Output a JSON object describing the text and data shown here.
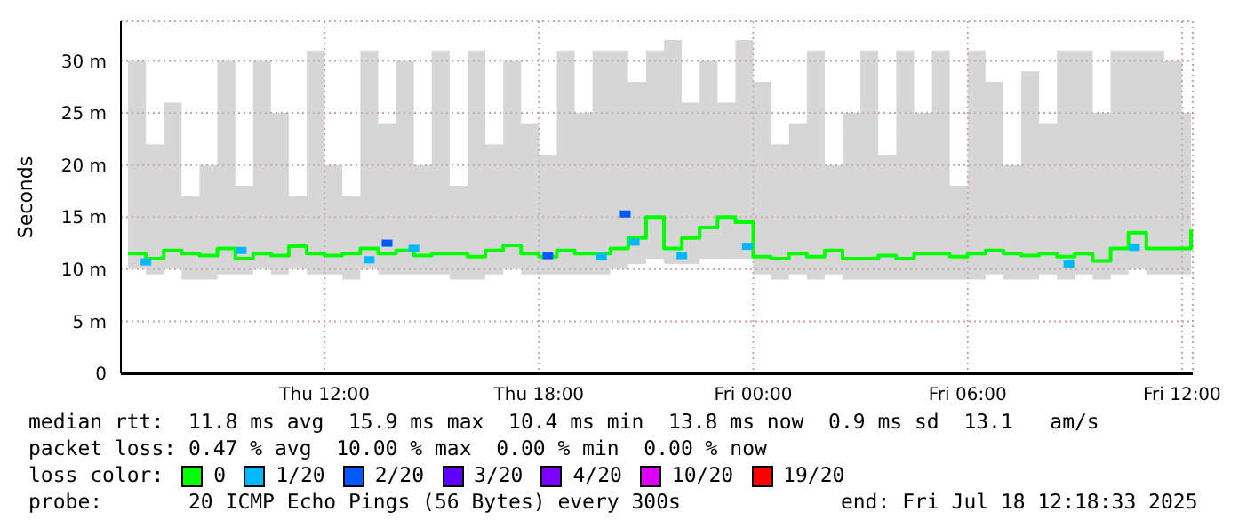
{
  "chart_data": {
    "type": "step",
    "ylabel": "Seconds",
    "legend_title": "loss color:",
    "legend": "bottom",
    "grid": true,
    "line_style": "solid",
    "xlim": [
      "2025-07-17T06:18",
      "2025-07-18T12:18"
    ],
    "xticks": [
      {
        "value": "2025-07-17T12:00",
        "label": "Thu 12:00"
      },
      {
        "value": "2025-07-17T18:00",
        "label": "Thu 18:00"
      },
      {
        "value": "2025-07-18T00:00",
        "label": "Fri 00:00"
      },
      {
        "value": "2025-07-18T06:00",
        "label": "Fri 06:00"
      },
      {
        "value": "2025-07-18T12:00",
        "label": "Fri 12:00"
      }
    ],
    "ylim": [
      0,
      33.8
    ],
    "yticks": [
      0,
      {
        "value": 5,
        "label": "5 m"
      },
      {
        "value": 10,
        "label": "10 m"
      },
      {
        "value": 15,
        "label": "15 m"
      },
      {
        "value": 20,
        "label": "20 m"
      },
      {
        "value": 25,
        "label": "25 m"
      },
      {
        "value": 30,
        "label": "30 m"
      }
    ],
    "series": [
      {
        "name": "0",
        "color": "#00ff00",
        "x": [
          "2025-07-17T06:30",
          "2025-07-17T07:00",
          "2025-07-17T07:30",
          "2025-07-17T08:00",
          "2025-07-17T08:30",
          "2025-07-17T09:00",
          "2025-07-17T09:30",
          "2025-07-17T10:00",
          "2025-07-17T10:30",
          "2025-07-17T11:00",
          "2025-07-17T11:30",
          "2025-07-17T12:00",
          "2025-07-17T12:30",
          "2025-07-17T13:00",
          "2025-07-17T13:30",
          "2025-07-17T14:00",
          "2025-07-17T14:30",
          "2025-07-17T15:00",
          "2025-07-17T15:30",
          "2025-07-17T16:00",
          "2025-07-17T16:30",
          "2025-07-17T17:00",
          "2025-07-17T17:30",
          "2025-07-17T18:00",
          "2025-07-17T18:30",
          "2025-07-17T19:00",
          "2025-07-17T19:30",
          "2025-07-17T20:00",
          "2025-07-17T20:30",
          "2025-07-17T21:00",
          "2025-07-17T21:30",
          "2025-07-17T22:00",
          "2025-07-17T22:30",
          "2025-07-17T23:00",
          "2025-07-17T23:30",
          "2025-07-18T00:00",
          "2025-07-18T00:30",
          "2025-07-18T01:00",
          "2025-07-18T01:30",
          "2025-07-18T02:00",
          "2025-07-18T02:30",
          "2025-07-18T03:00",
          "2025-07-18T03:30",
          "2025-07-18T04:00",
          "2025-07-18T04:30",
          "2025-07-18T05:00",
          "2025-07-18T05:30",
          "2025-07-18T06:00",
          "2025-07-18T06:30",
          "2025-07-18T07:00",
          "2025-07-18T07:30",
          "2025-07-18T08:00",
          "2025-07-18T08:30",
          "2025-07-18T09:00",
          "2025-07-18T09:30",
          "2025-07-18T10:00",
          "2025-07-18T10:30",
          "2025-07-18T11:00",
          "2025-07-18T11:30",
          "2025-07-18T12:00",
          "2025-07-18T12:15"
        ],
        "values": [
          11.5,
          11,
          11.8,
          11.5,
          11.3,
          12,
          11,
          11.5,
          11.3,
          12.2,
          11.5,
          11.3,
          11.5,
          12,
          11.5,
          11.8,
          11.3,
          11.5,
          11.5,
          11.2,
          11.8,
          12.3,
          11.5,
          11.2,
          11.8,
          11.5,
          11.5,
          12,
          13,
          15,
          12,
          13,
          14,
          15,
          14.5,
          11.2,
          11,
          11.5,
          11.2,
          11.8,
          11,
          11,
          11.3,
          11,
          11.5,
          11.5,
          11.2,
          11.5,
          11.8,
          11.5,
          11.3,
          11.5,
          11.2,
          11.5,
          10.8,
          12,
          13.5,
          12,
          12,
          12,
          13.8
        ],
        "lower": [
          10,
          9.5,
          10,
          9,
          9,
          9.5,
          9.5,
          10,
          9.5,
          10,
          9.5,
          9.5,
          9,
          10,
          9.5,
          9.5,
          9.5,
          9.5,
          9,
          9,
          9.5,
          10,
          9.5,
          9.5,
          9.5,
          9.5,
          9.5,
          10,
          10.5,
          11,
          10.5,
          10.5,
          11,
          11,
          11,
          9.5,
          9,
          9.5,
          9,
          9.5,
          9,
          9,
          9,
          9,
          9,
          9,
          9,
          9,
          9.5,
          9,
          9,
          9.5,
          9,
          9.5,
          9,
          9.5,
          10,
          9.5,
          9.5,
          9.5,
          10
        ],
        "upper": [
          30,
          22,
          26,
          17,
          20,
          30,
          18,
          30,
          25,
          17,
          31,
          20,
          17,
          31,
          24,
          30,
          20,
          31,
          18,
          31,
          22,
          30,
          24,
          21,
          31,
          25,
          31,
          31,
          28,
          31,
          32,
          26,
          30,
          26,
          32,
          28,
          22,
          24,
          31,
          20,
          25,
          31,
          21,
          31,
          25,
          31,
          18,
          31,
          28,
          20,
          29,
          24,
          31,
          31,
          25,
          31,
          31,
          31,
          30,
          25,
          31
        ]
      },
      {
        "name": "1/20",
        "type": "scatter",
        "marker": "square",
        "color": "#00b8ff",
        "x": [
          "2025-07-17T07:00",
          "2025-07-17T09:40",
          "2025-07-17T13:15",
          "2025-07-17T14:30",
          "2025-07-17T19:45",
          "2025-07-17T20:40",
          "2025-07-17T22:00",
          "2025-07-17T23:50",
          "2025-07-18T08:50",
          "2025-07-18T10:40"
        ],
        "values": [
          10.7,
          11.8,
          10.9,
          12,
          11.2,
          12.6,
          11.3,
          12.2,
          10.5,
          12.1
        ]
      },
      {
        "name": "2/20",
        "type": "scatter",
        "marker": "square",
        "color": "#0059ff",
        "x": [
          "2025-07-17T13:45",
          "2025-07-17T18:15",
          "2025-07-17T20:25"
        ],
        "values": [
          12.5,
          11.3,
          15.3
        ]
      },
      {
        "name": "3/20",
        "type": "scatter",
        "color": "#5e00ff"
      },
      {
        "name": "4/20",
        "type": "scatter",
        "color": "#7e00ff"
      },
      {
        "name": "10/20",
        "type": "scatter",
        "color": "#dd00ff"
      },
      {
        "name": "19/20",
        "type": "scatter",
        "color": "#ff0000"
      }
    ],
    "annotations": [
      "median rtt:  11.8 ms avg  15.9 ms max  10.4 ms min  13.8 ms now  0.9 ms sd  13.1   am/s",
      "packet loss: 0.47 % avg  10.00 % max  0.00 % min  0.00 % now",
      "probe:       20 ICMP Echo Pings (56 Bytes) every 300s             end: Fri Jul 18 12:18:33 2025"
    ]
  }
}
